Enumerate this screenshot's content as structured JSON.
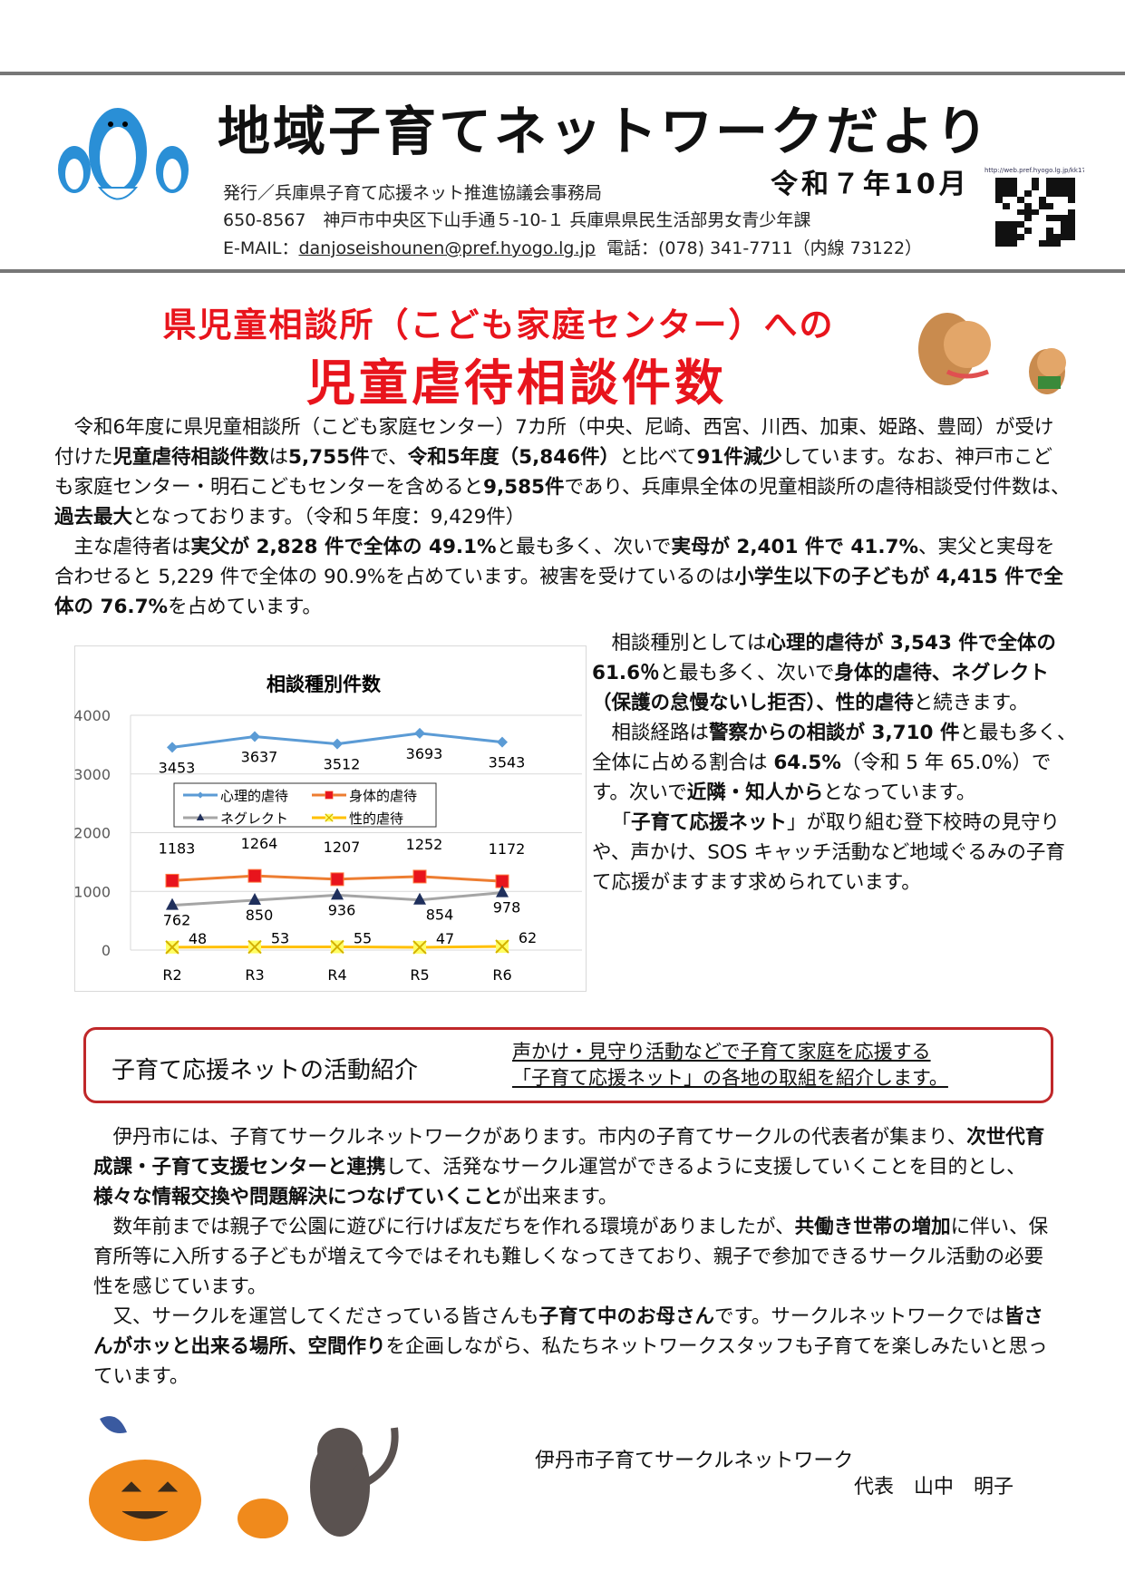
{
  "header": {
    "title": "地域子育てネットワークだより",
    "date": "令和７年10月",
    "publisher": "発行／兵庫県子育て応援ネット推進協議会事務局",
    "address": "650-8567　神戸市中央区下山手通５-10-１ 兵庫県県民生活部男女青少年課",
    "email_label": "E-MAIL：",
    "email": "danjoseishounen@pref.hyogo.lg.jp",
    "phone": "電話：(078) 341-7711（内線 73122）",
    "qr_url": "http://web.pref.hyogo.lg.jp/kk17/network-dayori.html"
  },
  "headline": {
    "line1": "県児童相談所（こども家庭センター）への",
    "line2": "児童虐待相談件数"
  },
  "intro_paragraphs": [
    [
      [
        "令和6年度に県児童相談所（こども家庭センター）7カ所（中央、尼崎、西宮、川西、加東、姫路、豊岡）が受け付けた",
        0
      ],
      [
        "児童虐待相談件数",
        1
      ],
      [
        "は",
        0
      ],
      [
        "5,755件",
        1
      ],
      [
        "で、",
        0
      ],
      [
        "令和5年度（5,846件）",
        1
      ],
      [
        "と比べて",
        0
      ],
      [
        "91件減少",
        1
      ],
      [
        "しています。なお、神戸市こども家庭センター・明石こどもセンターを含めると",
        0
      ],
      [
        "9,585件",
        1
      ],
      [
        "であり、兵庫県全体の児童相談所の虐待相談受付件数は、",
        0
      ],
      [
        "過去最大",
        1
      ],
      [
        "となっております。（令和５年度：9,429件）",
        0
      ]
    ],
    [
      [
        "主な虐待者は",
        0
      ],
      [
        "実父が 2,828 件で全体の 49.1%",
        1
      ],
      [
        "と最も多く、次いで",
        0
      ],
      [
        "実母が 2,401 件で 41.7%",
        1
      ],
      [
        "、実父と実母を合わせると 5,229 件で全体の 90.9%を占めています。被害を受けているのは",
        0
      ],
      [
        "小学生以下の子どもが 4,415 件で全体の 76.7%",
        1
      ],
      [
        "を占めています。",
        0
      ]
    ]
  ],
  "side_paragraphs": [
    [
      [
        "相談種別としては",
        0
      ],
      [
        "心理的虐待が 3,543 件で全体の 61.6％",
        1
      ],
      [
        "と最も多く、次いで",
        0
      ],
      [
        "身体的虐待、ネグレクト（保護の怠慢ないし拒否）、性的虐待",
        1
      ],
      [
        "と続きます。",
        0
      ]
    ],
    [
      [
        "相談経路は",
        0
      ],
      [
        "警察からの相談が 3,710 件",
        1
      ],
      [
        "と最も多く、全体に占める割合は ",
        0
      ],
      [
        "64.5%",
        1
      ],
      [
        "（令和 5 年 65.0%）です。次いで",
        0
      ],
      [
        "近隣・知人から",
        1
      ],
      [
        "となっています。",
        0
      ]
    ],
    [
      [
        "「",
        0
      ],
      [
        "子育て応援ネット",
        1
      ],
      [
        "」が取り組む登下校時の見守りや、声かけ、SOS キャッチ活動など地域ぐるみの子育て応援がますます求められています。",
        0
      ]
    ]
  ],
  "chart_data": {
    "type": "line",
    "title": "相談種別件数",
    "categories": [
      "R2",
      "R3",
      "R4",
      "R5",
      "R6"
    ],
    "ylim": [
      0,
      4000
    ],
    "yticks": [
      0,
      1000,
      2000,
      3000,
      4000
    ],
    "grid": true,
    "legend": "center",
    "series": [
      {
        "name": "心理的虐待",
        "values": [
          3453,
          3637,
          3512,
          3693,
          3543
        ],
        "color": "#5b9bd5",
        "marker": "diamond"
      },
      {
        "name": "身体的虐待",
        "values": [
          1183,
          1264,
          1207,
          1252,
          1172
        ],
        "color": "#ed7d31",
        "marker": "square"
      },
      {
        "name": "ネグレクト",
        "values": [
          762,
          850,
          936,
          854,
          978
        ],
        "color": "#a5a5a5",
        "marker": "triangle"
      },
      {
        "name": "性的虐待",
        "values": [
          48,
          53,
          55,
          47,
          62
        ],
        "color": "#ffc000",
        "marker": "x"
      }
    ]
  },
  "activity": {
    "label": "子育て応援ネットの活動紹介",
    "note_line1": "声かけ・見守り活動などで子育て家庭を応援する",
    "note_line2": "「子育て応援ネット」の各地の取組を紹介します。"
  },
  "activity_paragraphs": [
    [
      [
        "伊丹市には、子育てサークルネットワークがあります。市内の子育てサークルの代表者が集まり、",
        0
      ],
      [
        "次世代育成課・子育て支援センターと連携",
        1
      ],
      [
        "して、活発なサークル運営ができるように支援していくことを目的とし、",
        0
      ],
      [
        "様々な情報交換や問題解決につなげていくこと",
        1
      ],
      [
        "が出来ます。",
        0
      ]
    ],
    [
      [
        "数年前までは親子で公園に遊びに行けば友だちを作れる環境がありましたが、",
        0
      ],
      [
        "共働き世帯の増加",
        1
      ],
      [
        "に伴い、保育所等に入所する子どもが増えて今ではそれも難しくなってきており、親子で参加できるサークル活動の必要性を感じています。",
        0
      ]
    ],
    [
      [
        "又、サークルを運営してくださっている皆さんも",
        0
      ],
      [
        "子育て中のお母さん",
        1
      ],
      [
        "です。サークルネットワークでは",
        0
      ],
      [
        "皆さんがホッと出来る場所、空間作り",
        1
      ],
      [
        "を企画しながら、私たちネットワークスタッフも子育てを楽しみたいと思っています。",
        0
      ]
    ]
  ],
  "signature": {
    "org": "伊丹市子育てサークルネットワーク",
    "rep": "代表　山中　明子"
  }
}
